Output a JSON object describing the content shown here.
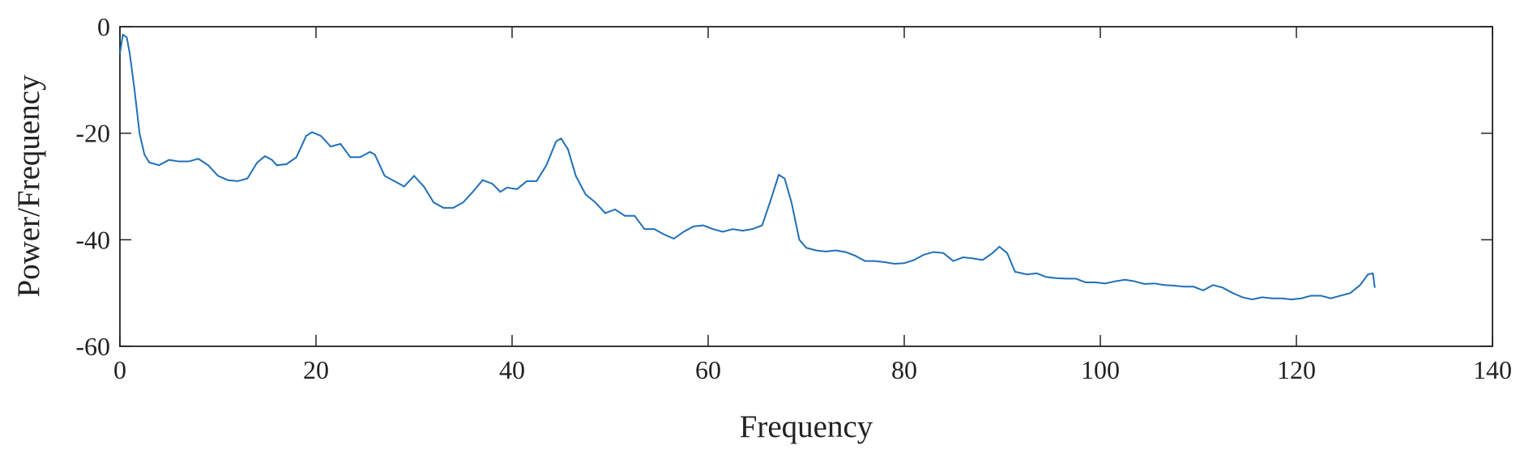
{
  "chart_data": {
    "type": "line",
    "xlabel": "Frequency",
    "ylabel": "Power/Frequency",
    "xlim": [
      0,
      140
    ],
    "ylim": [
      -60,
      0
    ],
    "xticks": [
      0,
      20,
      40,
      60,
      80,
      100,
      120,
      140
    ],
    "yticks": [
      -60,
      -40,
      -20,
      0
    ],
    "grid": false,
    "x": [
      0,
      0.3,
      0.7,
      1,
      1.5,
      2,
      2.5,
      3,
      4,
      5,
      6,
      7,
      8,
      9,
      10,
      11,
      12,
      13,
      14,
      14.8,
      15.5,
      16,
      17,
      18,
      19,
      19.6,
      20.5,
      21.5,
      22.5,
      23.5,
      24.5,
      25.5,
      26,
      27,
      28,
      29,
      30,
      31,
      32,
      33,
      34,
      35,
      36,
      37,
      38,
      38.8,
      39.5,
      40.5,
      41.5,
      42.5,
      43.5,
      44.5,
      45,
      45.7,
      46.5,
      47.5,
      48.5,
      49.5,
      50.5,
      51.5,
      52.5,
      53.5,
      54.5,
      55.5,
      56.5,
      57.5,
      58.5,
      59.5,
      60.5,
      61.5,
      62.5,
      63.5,
      64.5,
      65.5,
      66.3,
      67.2,
      67.8,
      68.5,
      69.3,
      70,
      71,
      72,
      73,
      74,
      75,
      76,
      77,
      78,
      79,
      80,
      81,
      82,
      83,
      84,
      85,
      86,
      87,
      88,
      89,
      89.7,
      90.5,
      91.3,
      92.5,
      93.5,
      94.5,
      95.5,
      96.5,
      97.5,
      98.5,
      99.5,
      100.5,
      101.5,
      102.5,
      103.5,
      104.5,
      105.5,
      106.5,
      107.5,
      108.5,
      109.5,
      110.5,
      111.5,
      112.5,
      113.5,
      114.5,
      115.5,
      116.5,
      117.5,
      118.5,
      119.5,
      120.5,
      121.5,
      122.5,
      123.5,
      124.5,
      125.5,
      126.5,
      127.3,
      127.8,
      128
    ],
    "series": [
      {
        "color": "#1f6fb8",
        "values": [
          -5,
          -1.5,
          -2,
          -5,
          -12,
          -20,
          -24,
          -25.5,
          -26,
          -25,
          -25.3,
          -25.3,
          -24.8,
          -26,
          -28,
          -28.8,
          -29,
          -28.5,
          -25.5,
          -24.3,
          -25,
          -26,
          -25.8,
          -24.5,
          -20.5,
          -19.8,
          -20.5,
          -22.5,
          -22,
          -24.5,
          -24.5,
          -23.5,
          -24,
          -28,
          -29,
          -30,
          -28,
          -30,
          -33,
          -34,
          -34,
          -33,
          -31,
          -28.8,
          -29.5,
          -31,
          -30.2,
          -30.5,
          -29,
          -29,
          -26,
          -21.5,
          -21,
          -23,
          -28,
          -31.5,
          -33,
          -35,
          -34.3,
          -35.5,
          -35.5,
          -38,
          -38,
          -39,
          -39.8,
          -38.5,
          -37.5,
          -37.3,
          -38,
          -38.5,
          -38,
          -38.3,
          -38,
          -37.3,
          -33,
          -27.8,
          -28.5,
          -33,
          -40,
          -41.5,
          -42,
          -42.2,
          -42,
          -42.3,
          -43,
          -44,
          -44,
          -44.2,
          -44.5,
          -44.4,
          -43.8,
          -42.8,
          -42.3,
          -42.5,
          -44,
          -43.3,
          -43.5,
          -43.8,
          -42.5,
          -41.3,
          -42.5,
          -46,
          -46.5,
          -46.3,
          -47,
          -47.2,
          -47.3,
          -47.3,
          -48,
          -48,
          -48.2,
          -47.8,
          -47.5,
          -47.8,
          -48.3,
          -48.2,
          -48.5,
          -48.6,
          -48.8,
          -48.8,
          -49.5,
          -48.5,
          -49,
          -50,
          -50.8,
          -51.2,
          -50.8,
          -51,
          -51,
          -51.2,
          -51,
          -50.5,
          -50.5,
          -51,
          -50.5,
          -50,
          -48.5,
          -46.5,
          -46.3,
          -49
        ]
      }
    ]
  }
}
